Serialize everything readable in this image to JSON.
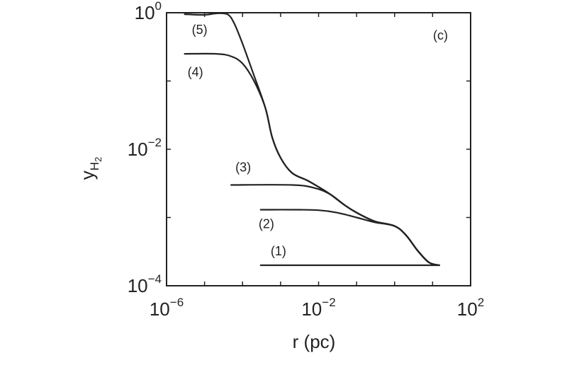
{
  "chart_data": {
    "type": "line",
    "panel_label": "(c)",
    "xlabel": "r (pc)",
    "ylabel": "y",
    "ylabel_subscript": "H",
    "ylabel_subsubscript": "2",
    "x_scale": "log",
    "y_scale": "log",
    "xlim": [
      1e-06,
      100
    ],
    "ylim": [
      0.0001,
      1
    ],
    "x_ticks": [
      {
        "value": 1e-06,
        "base": "10",
        "exp": "−6"
      },
      {
        "value": 0.01,
        "base": "10",
        "exp": "−2"
      },
      {
        "value": 100,
        "base": "10",
        "exp": "2"
      }
    ],
    "y_ticks": [
      {
        "value": 1,
        "base": "10",
        "exp": "0"
      },
      {
        "value": 0.01,
        "base": "10",
        "exp": "−2"
      },
      {
        "value": 0.0001,
        "base": "10",
        "exp": "−4"
      }
    ],
    "grid": false,
    "series": [
      {
        "name": "(1)",
        "points": [
          [
            0.0003,
            0.0002
          ],
          [
            0.5,
            0.0002
          ],
          [
            4,
            0.0002
          ],
          [
            15,
            0.0002
          ]
        ]
      },
      {
        "name": "(2)",
        "points": [
          [
            0.0003,
            0.0013
          ],
          [
            0.003,
            0.0013
          ],
          [
            0.01,
            0.00128
          ],
          [
            0.03,
            0.00118
          ],
          [
            0.1,
            0.001
          ],
          [
            0.3,
            0.00085
          ],
          [
            1,
            0.00075
          ],
          [
            2,
            0.00055
          ],
          [
            4,
            0.00033
          ],
          [
            8,
            0.00022
          ],
          [
            15,
            0.0002
          ]
        ]
      },
      {
        "name": "(3)",
        "points": [
          [
            5e-05,
            0.003
          ],
          [
            0.002,
            0.003
          ],
          [
            0.008,
            0.0027
          ],
          [
            0.02,
            0.0022
          ],
          [
            0.05,
            0.0015
          ],
          [
            0.1,
            0.00118
          ],
          [
            0.3,
            0.00088
          ],
          [
            1,
            0.00075
          ],
          [
            2,
            0.00055
          ],
          [
            4,
            0.00033
          ],
          [
            8,
            0.00022
          ],
          [
            15,
            0.0002
          ]
        ]
      },
      {
        "name": "(4)",
        "points": [
          [
            3e-06,
            0.25
          ],
          [
            2e-05,
            0.25
          ],
          [
            5e-05,
            0.23
          ],
          [
            0.0001,
            0.18
          ],
          [
            0.0002,
            0.1
          ],
          [
            0.0004,
            0.04
          ],
          [
            0.0006,
            0.015
          ],
          [
            0.001,
            0.0075
          ],
          [
            0.002,
            0.0045
          ],
          [
            0.005,
            0.0035
          ],
          [
            0.01,
            0.0028
          ],
          [
            0.02,
            0.0022
          ],
          [
            0.05,
            0.0015
          ],
          [
            0.1,
            0.00118
          ],
          [
            0.3,
            0.00088
          ],
          [
            1,
            0.00075
          ],
          [
            2,
            0.00055
          ],
          [
            4,
            0.00033
          ],
          [
            8,
            0.00022
          ],
          [
            15,
            0.0002
          ]
        ]
      },
      {
        "name": "(5)",
        "points": [
          [
            3e-06,
            0.95
          ],
          [
            1e-05,
            0.93
          ],
          [
            2e-05,
            1.0
          ],
          [
            4e-05,
            0.95
          ],
          [
            6e-05,
            0.7
          ],
          [
            0.0001,
            0.35
          ],
          [
            0.0002,
            0.12
          ],
          [
            0.0004,
            0.04
          ],
          [
            0.0006,
            0.015
          ],
          [
            0.001,
            0.0075
          ],
          [
            0.002,
            0.0045
          ],
          [
            0.005,
            0.0035
          ],
          [
            0.01,
            0.0028
          ],
          [
            0.02,
            0.0022
          ],
          [
            0.05,
            0.0015
          ],
          [
            0.1,
            0.00118
          ],
          [
            0.3,
            0.00088
          ],
          [
            1,
            0.00075
          ],
          [
            2,
            0.00055
          ],
          [
            4,
            0.00033
          ],
          [
            8,
            0.00022
          ],
          [
            15,
            0.0002
          ]
        ]
      }
    ]
  }
}
